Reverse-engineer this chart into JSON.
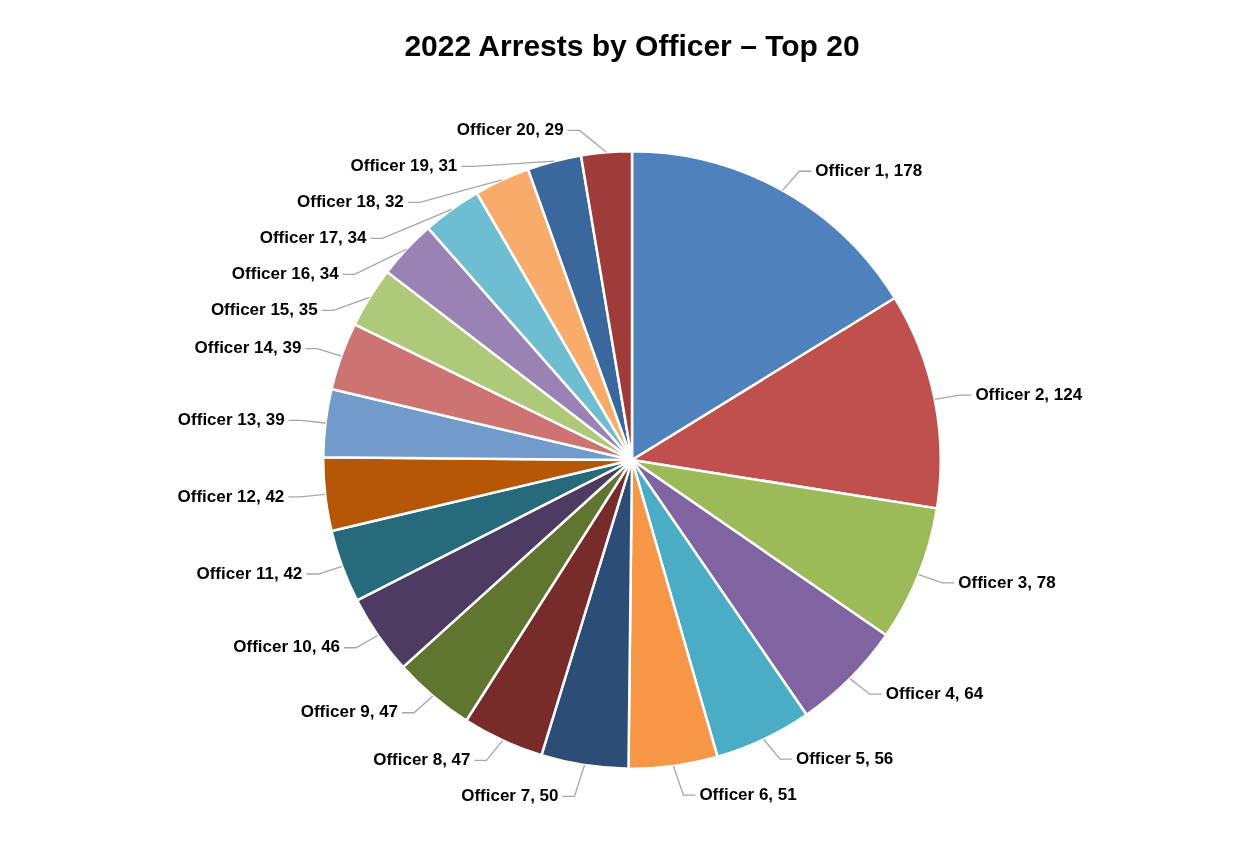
{
  "chart_data": {
    "type": "pie",
    "title": "2022 Arrests by Officer – Top 20",
    "categories": [
      "Officer 1",
      "Officer 2",
      "Officer 3",
      "Officer 4",
      "Officer 5",
      "Officer 6",
      "Officer 7",
      "Officer 8",
      "Officer 9",
      "Officer 10",
      "Officer 11",
      "Officer 12",
      "Officer 13",
      "Officer 14",
      "Officer 15",
      "Officer 16",
      "Officer 17",
      "Officer 18",
      "Officer 19",
      "Officer 20"
    ],
    "values": [
      178,
      124,
      78,
      64,
      56,
      51,
      50,
      47,
      47,
      46,
      42,
      42,
      39,
      39,
      35,
      34,
      34,
      32,
      31,
      29
    ],
    "value_labels": [
      ", 178",
      ", 124",
      ", 78",
      ", 64",
      ", 56",
      ", 51",
      ", 50",
      ", 47",
      ", 47",
      ", 46",
      ", 42",
      ", 42",
      ", 39",
      ", 39",
      ", 35",
      ", 34",
      ", 34",
      ", 32",
      ", 31",
      ", 29"
    ],
    "colors": [
      "#4f81bd",
      "#c0504d",
      "#9bbb59",
      "#8064a2",
      "#4bacc6",
      "#f79646",
      "#2c4d75",
      "#772c2a",
      "#5f7530",
      "#4d3b62",
      "#276a7c",
      "#b65708",
      "#729aca",
      "#cd7371",
      "#afc97a",
      "#9983b5",
      "#6fbdd1",
      "#f9ab6b",
      "#3a679c",
      "#9f3b38"
    ],
    "legend": false
  }
}
